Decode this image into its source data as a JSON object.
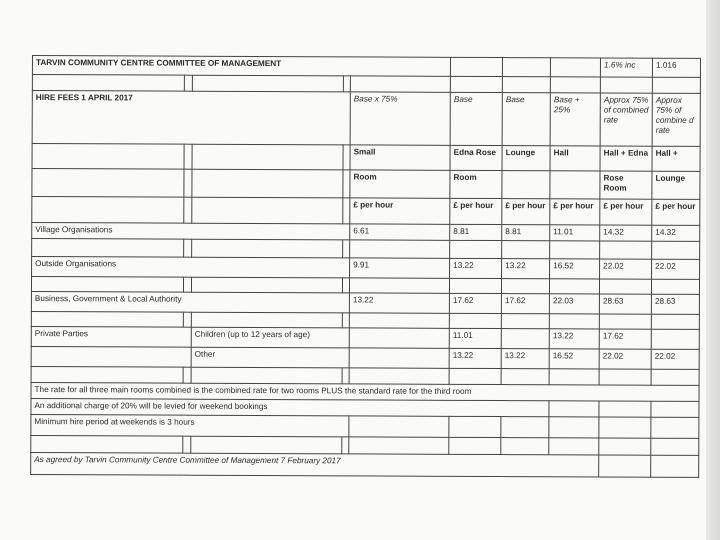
{
  "title": "TARVIN COMMUNITY CENTRE COMMITTEE OF MANAGEMENT",
  "inc_label": "1.6% inc",
  "inc_factor": "1.016",
  "subtitle": "HIRE FEES 1 APRIL 2017",
  "columns": [
    {
      "basis": "Base x 75%",
      "name1": "Small",
      "name2": "Room",
      "unit": "£ per hour"
    },
    {
      "basis": "Base",
      "name1": "Edna Rose",
      "name2": "Room",
      "unit": "£ per hour"
    },
    {
      "basis": "Base",
      "name1": "Lounge",
      "name2": "",
      "unit": "£ per hour"
    },
    {
      "basis": "Base + 25%",
      "name1": "Hall",
      "name2": "",
      "unit": "£ per hour"
    },
    {
      "basis": "Approx 75% of combined rate",
      "name1": "Hall + Edna",
      "name2": "Rose Room",
      "unit": "£ per hour"
    },
    {
      "basis": "Approx 75% of combine d rate",
      "name1": "Hall +",
      "name2": "Lounge",
      "unit": "£ per hour"
    }
  ],
  "rows": {
    "village": {
      "label": "Village Organisations",
      "values": [
        "6.61",
        "8.81",
        "8.81",
        "11.01",
        "14.32",
        "14.32"
      ]
    },
    "outside": {
      "label": "Outside Organisations",
      "values": [
        "9.91",
        "13.22",
        "13.22",
        "16.52",
        "22.02",
        "22.02"
      ]
    },
    "business": {
      "label": "Business, Government & Local Authority",
      "values": [
        "13.22",
        "17.62",
        "17.62",
        "22.03",
        "28.63",
        "28.63"
      ]
    },
    "children": {
      "group": "Private Parties",
      "label": "Children (up to 12 years of age)",
      "values": [
        "",
        "11.01",
        "",
        "13.22",
        "17.62",
        ""
      ]
    },
    "other": {
      "label": "Other",
      "values": [
        "",
        "13.22",
        "13.22",
        "16.52",
        "22.02",
        "22.02"
      ]
    }
  },
  "notes": [
    "The rate for all three main rooms combined is the combined rate for two rooms PLUS the standard rate for the third room",
    "An additional charge of 20% will be levied for weekend bookings",
    "Minimum hire period at weekends is 3 hours"
  ],
  "agreed": "As agreed by Tarvin Community Centre Committee of Management 7 February 2017"
}
